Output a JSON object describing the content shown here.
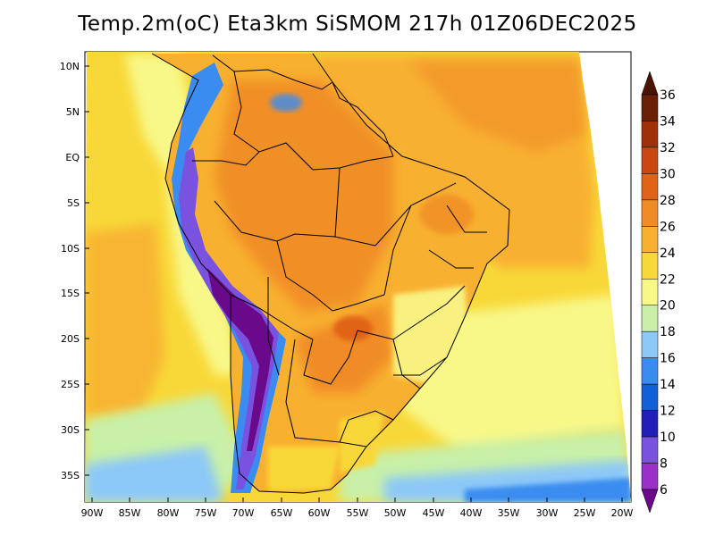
{
  "title": "Temp.2m(oC) Eta3km SiSMOM 217h 01Z06DEC2025",
  "variable": "2m temperature",
  "units": "oC",
  "model": "Eta3km SiSMOM",
  "forecast_hour": "217h",
  "valid_time": "01Z06DEC2025",
  "lat_ticks": [
    "10N",
    "5N",
    "EQ",
    "5S",
    "10S",
    "15S",
    "20S",
    "25S",
    "30S",
    "35S"
  ],
  "lon_ticks": [
    "90W",
    "85W",
    "80W",
    "75W",
    "70W",
    "65W",
    "60W",
    "55W",
    "50W",
    "45W",
    "40W",
    "35W",
    "30W",
    "25W",
    "20W"
  ],
  "colorbar": {
    "levels": [
      "6",
      "8",
      "10",
      "12",
      "14",
      "16",
      "18",
      "20",
      "22",
      "24",
      "26",
      "28",
      "30",
      "32",
      "34",
      "36"
    ],
    "colors": [
      "#6a0a8a",
      "#9b30c8",
      "#7a52e0",
      "#2020b8",
      "#1060d8",
      "#3a8cf0",
      "#8cc8f8",
      "#c8f0a8",
      "#f8f888",
      "#f8d838",
      "#f8b030",
      "#f08c28",
      "#e06418",
      "#c84810",
      "#a03008",
      "#6a2004",
      "#4a1402"
    ]
  }
}
